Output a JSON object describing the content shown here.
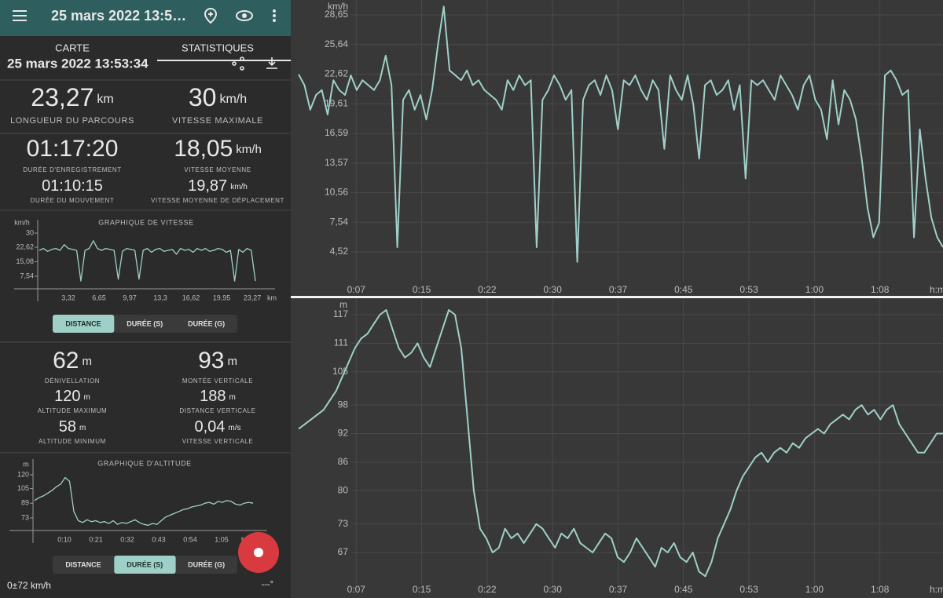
{
  "header": {
    "title": "25 mars 2022 13:5…"
  },
  "tabs": [
    "CARTE",
    "STATISTIQUES"
  ],
  "date": "25 mars 2022 13:53:34",
  "stats": [
    {
      "value": "23,27",
      "unit": "km",
      "label": "LONGUEUR DU PARCOURS"
    },
    {
      "value": "30",
      "unit": "km/h",
      "label": "VITESSE MAXIMALE"
    },
    {
      "value": "01:17:20",
      "label": "DURÉE D'ENREGISTREMENT"
    },
    {
      "value": "18,05",
      "unit": "km/h",
      "label": "VITESSE MOYENNE"
    },
    {
      "value": "01:10:15",
      "label": "DURÉE DU MOUVEMENT"
    },
    {
      "value": "19,87",
      "unit": "km/h",
      "label": "VITESSE MOYENNE DE DÉPLACEMENT"
    }
  ],
  "speed_toggle": {
    "options": [
      "DISTANCE",
      "DURÉE (S)",
      "DURÉE (G)"
    ],
    "selected": 0
  },
  "altitude_stats": [
    {
      "value": "62",
      "unit": "m",
      "label": "DÉNIVELLATION"
    },
    {
      "value": "93",
      "unit": "m",
      "label": "MONTÉE VERTICALE"
    },
    {
      "value": "120",
      "unit": "m",
      "label": "ALTITUDE MAXIMUM"
    },
    {
      "value": "188",
      "unit": "m",
      "label": "DISTANCE VERTICALE"
    },
    {
      "value": "58",
      "unit": "m",
      "label": "ALTITUDE MINIMUM"
    },
    {
      "value": "0,04",
      "unit": "m/s",
      "label": "VITESSE VERTICALE"
    }
  ],
  "altitude_toggle": {
    "options": [
      "DISTANCE",
      "DURÉE (S)",
      "DURÉE (G)"
    ],
    "selected": 1
  },
  "status": {
    "accuracy": "0±72 km/h",
    "heading": "---°"
  },
  "mini_speed_chart": {
    "type": "line",
    "title": "GRAPHIQUE DE VITESSE",
    "y_label": "km/h",
    "x_label": "km",
    "color": "#9fd0c8",
    "grid": false,
    "ylim": [
      1.01,
      34.9
    ],
    "yticks": [
      {
        "value": 7.54,
        "label": "7,54"
      },
      {
        "value": 15.08,
        "label": "15,08"
      },
      {
        "value": 22.62,
        "label": "22,62"
      },
      30
    ],
    "xticks": [
      "3,32",
      "6,65",
      "9,97",
      "13,3",
      "16,62",
      "19,95",
      "23,27"
    ],
    "values": [
      21,
      22,
      20.5,
      21.5,
      22,
      21,
      24,
      22,
      21.5,
      21,
      5,
      21,
      22,
      26,
      22,
      21,
      22,
      21.5,
      21,
      6,
      20.5,
      22,
      21.5,
      21,
      6,
      21,
      22,
      20,
      21.5,
      22,
      20.5,
      21,
      21.5,
      19,
      22,
      21,
      21.5,
      20,
      22,
      21,
      22,
      20.5,
      21,
      22,
      21.5,
      20,
      21,
      5,
      21.5,
      20,
      22,
      21,
      5
    ]
  },
  "mini_altitude_chart": {
    "type": "line",
    "title": "GRAPHIQUE D'ALTITUDE",
    "y_label": "m",
    "x_label": "h:m",
    "color": "#9fd0c8",
    "grid": false,
    "ylim": [
      59.3,
      132.8
    ],
    "yticks": [
      73,
      89,
      105,
      120
    ],
    "xticks": [
      "0:10",
      "0:21",
      "0:32",
      "0:43",
      "0:54",
      "1:05"
    ],
    "values": [
      92,
      95,
      97,
      100,
      103,
      107,
      110,
      117,
      113,
      80,
      70,
      68,
      71,
      69,
      70,
      68,
      69,
      67,
      70,
      66,
      68,
      67,
      69,
      71,
      68,
      66,
      65,
      67,
      66,
      70,
      74,
      76,
      78,
      80,
      82,
      83,
      85,
      86,
      87,
      89,
      90,
      88,
      91,
      90,
      92,
      91,
      88,
      87,
      89,
      90,
      89
    ]
  },
  "speed_chart": {
    "type": "line",
    "y_label": "km/h",
    "x_label": "h:m",
    "color": "#9fd0c8",
    "grid": true,
    "ylim": [
      1.56,
      30.17
    ],
    "yticks": [
      {
        "value": 4.52,
        "label": "4,52"
      },
      {
        "value": 7.54,
        "label": "7,54"
      },
      {
        "value": 10.56,
        "label": "10,56"
      },
      {
        "value": 13.57,
        "label": "13,57"
      },
      {
        "value": 16.59,
        "label": "16,59"
      },
      {
        "value": 19.61,
        "label": "19,61"
      },
      {
        "value": 22.62,
        "label": "22,62"
      },
      {
        "value": 25.64,
        "label": "25,64"
      },
      {
        "value": 28.65,
        "label": "28,65"
      }
    ],
    "xticks": [
      "0:07",
      "0:15",
      "0:22",
      "0:30",
      "0:37",
      "0:45",
      "0:53",
      "1:00",
      "1:08"
    ],
    "values": [
      22.6,
      21.5,
      19,
      20.5,
      21,
      18.5,
      22,
      21,
      20.5,
      22.5,
      21,
      22,
      21.5,
      21,
      22,
      24.5,
      21.5,
      5,
      20,
      21,
      19,
      20.5,
      18,
      21,
      25.6,
      29.5,
      23,
      22.5,
      22,
      23,
      21.5,
      22,
      21,
      20.5,
      20,
      19,
      22,
      21,
      22.5,
      21.5,
      22,
      5,
      20,
      21,
      22.5,
      21.5,
      20,
      21,
      3.5,
      20,
      21.5,
      22,
      20.5,
      22.5,
      21,
      17,
      22,
      21.5,
      22.5,
      21,
      20,
      22,
      21,
      15,
      22.5,
      21,
      20,
      22.5,
      19.5,
      14,
      21.5,
      22,
      20.5,
      21,
      22,
      19,
      21.5,
      12,
      22,
      21.5,
      22,
      21,
      20,
      22.5,
      21.5,
      20.5,
      19,
      21.5,
      22.5,
      20,
      19,
      16,
      22,
      17.5,
      21,
      20,
      18,
      14,
      9,
      6,
      7.5,
      22.5,
      23,
      22,
      20.5,
      21,
      6,
      17,
      12,
      8,
      6,
      5
    ]
  },
  "altitude_chart": {
    "type": "line",
    "y_label": "m",
    "x_label": "h:m",
    "color": "#9fd0c8",
    "grid": true,
    "ylim": [
      60.24,
      120.47
    ],
    "yticks": [
      67,
      73,
      80,
      86,
      92,
      98,
      105,
      111,
      117
    ],
    "xticks": [
      "0:07",
      "0:15",
      "0:22",
      "0:30",
      "0:37",
      "0:45",
      "0:53",
      "1:00",
      "1:08"
    ],
    "values": [
      93,
      94,
      95,
      96,
      97,
      99,
      101,
      104,
      107,
      110,
      112,
      113,
      115,
      117,
      118,
      114,
      110,
      108,
      109,
      111,
      108,
      106,
      110,
      114,
      118,
      117,
      110,
      95,
      80,
      72,
      70,
      67,
      68,
      72,
      70,
      71,
      69,
      71,
      73,
      72,
      70,
      68,
      71,
      70,
      72,
      69,
      68,
      67,
      69,
      71,
      70,
      66,
      65,
      67,
      70,
      68,
      66,
      64,
      68,
      67,
      69,
      66,
      65,
      67,
      63,
      62,
      65,
      70,
      73,
      76,
      80,
      83,
      85,
      87,
      88,
      86,
      88,
      89,
      88,
      90,
      89,
      91,
      92,
      93,
      92,
      94,
      95,
      96,
      95,
      97,
      98,
      96,
      97,
      95,
      97,
      98,
      94,
      92,
      90,
      88,
      88,
      90,
      92,
      92
    ]
  }
}
